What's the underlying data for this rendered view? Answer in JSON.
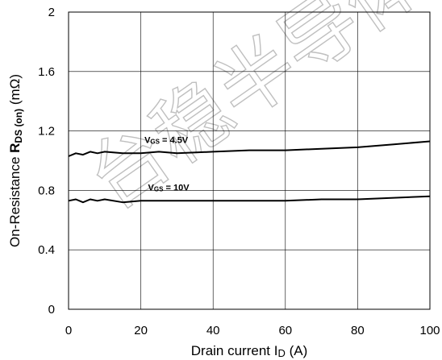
{
  "chart_data": {
    "type": "line",
    "xlabel": "Drain current I",
    "xlabel_sub": "D",
    "xlabel_unit": " (A)",
    "ylabel_prefix": "On-Resistance ",
    "ylabel_main": "R",
    "ylabel_sub": "DS (on)",
    "ylabel_unit": " (mΩ)",
    "xlim": [
      0,
      100
    ],
    "ylim": [
      0,
      2
    ],
    "x_ticks": [
      "0",
      "20",
      "40",
      "60",
      "80",
      "100"
    ],
    "y_ticks": [
      "0",
      "0.4",
      "0.8",
      "1.2",
      "1.6",
      "2"
    ],
    "grid": true,
    "series": [
      {
        "name": "V",
        "name_sub": "GS",
        "name_value": " = 4.5V",
        "label_at": [
          21,
          1.12
        ],
        "x": [
          0,
          2,
          4,
          6,
          8,
          10,
          15,
          20,
          25,
          30,
          40,
          50,
          60,
          70,
          80,
          90,
          100
        ],
        "values": [
          1.03,
          1.05,
          1.04,
          1.06,
          1.05,
          1.06,
          1.05,
          1.05,
          1.06,
          1.05,
          1.06,
          1.07,
          1.07,
          1.08,
          1.09,
          1.11,
          1.13
        ]
      },
      {
        "name": "V",
        "name_sub": "GS",
        "name_value": " = 10V",
        "label_at": [
          22,
          0.8
        ],
        "x": [
          0,
          2,
          4,
          6,
          8,
          10,
          15,
          20,
          25,
          30,
          40,
          50,
          60,
          70,
          80,
          90,
          100
        ],
        "values": [
          0.73,
          0.74,
          0.72,
          0.74,
          0.73,
          0.74,
          0.72,
          0.73,
          0.73,
          0.73,
          0.73,
          0.73,
          0.73,
          0.74,
          0.74,
          0.75,
          0.76
        ]
      }
    ]
  },
  "watermark": "台稳半导体"
}
